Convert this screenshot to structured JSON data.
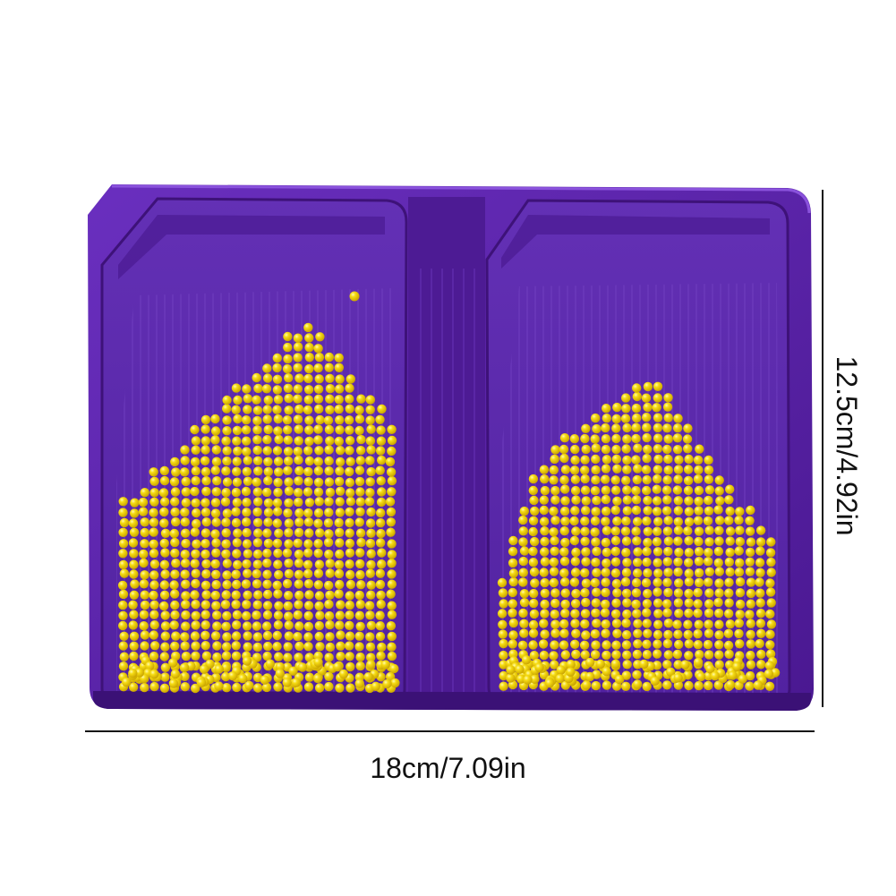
{
  "photo": {
    "subject": "diamond-painting-tray",
    "colors": {
      "tray": "#5b22a8",
      "tray_dark": "#3f1480",
      "tray_light": "#7a3fcf",
      "bead": "#f2d30c",
      "bead_shade": "#c9a800",
      "bead_highlight": "#fff59a",
      "dimension_line": "#111111"
    }
  },
  "dimensions": {
    "width": "18cm/7.09in",
    "height": "12.5cm/4.92in"
  }
}
